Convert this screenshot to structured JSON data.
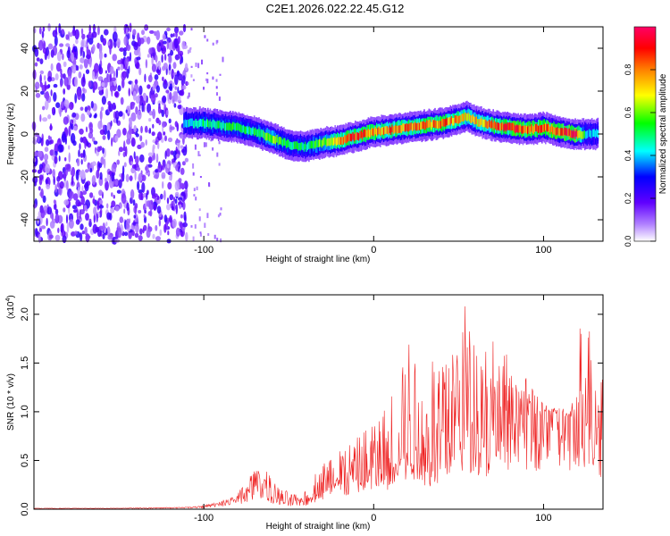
{
  "figure": {
    "title": "C2E1.2026.022.22.45.G12"
  },
  "chart_data": [
    {
      "type": "heatmap",
      "title": "C2E1.2026.022.22.45.G12",
      "xlabel": "Height of straight line (km)",
      "ylabel": "Frequency (Hz)",
      "xlim": [
        -200,
        135
      ],
      "ylim": [
        -50,
        50
      ],
      "x_ticks": [
        -100,
        0,
        100
      ],
      "y_ticks": [
        -40,
        -20,
        0,
        20,
        40
      ],
      "colorbar": {
        "label": "Normalized spectral amplitude",
        "range": [
          0,
          1
        ],
        "ticks": [
          "0.0",
          "0.2",
          "0.4",
          "0.6",
          "0.8"
        ],
        "colors": [
          "#ffffff",
          "#8000ff",
          "#0000ff",
          "#00ffff",
          "#00ff00",
          "#ffff00",
          "#ff8000",
          "#ff0000",
          "#ff00ff"
        ]
      },
      "noise_region_x": [
        -200,
        -110
      ],
      "ridge": {
        "x": [
          -112,
          -100,
          -90,
          -80,
          -70,
          -60,
          -50,
          -40,
          -30,
          -20,
          -10,
          0,
          10,
          20,
          30,
          40,
          50,
          55,
          60,
          70,
          80,
          90,
          100,
          110,
          118,
          125,
          132
        ],
        "freq": [
          5,
          5,
          4,
          3,
          1,
          -2,
          -5,
          -6,
          -4,
          -3,
          -1,
          1,
          2,
          3,
          4,
          5,
          7,
          8,
          6,
          4,
          3,
          2,
          3,
          1,
          0,
          0,
          0
        ],
        "peak": [
          0.4,
          0.5,
          0.5,
          0.5,
          0.5,
          0.6,
          0.5,
          0.5,
          0.6,
          0.8,
          0.85,
          0.8,
          0.8,
          0.8,
          0.8,
          0.8,
          0.75,
          0.7,
          0.7,
          0.8,
          0.85,
          0.85,
          0.85,
          0.9,
          0.95,
          0.4,
          0.4
        ]
      }
    },
    {
      "type": "line",
      "title": "",
      "xlabel": "Height of straight line (km)",
      "ylabel": "SNR (10 * v/v)",
      "scale_label": "(x10",
      "scale_exp": "4",
      "scale_close": ")",
      "xlim": [
        -200,
        135
      ],
      "ylim": [
        0,
        2.2
      ],
      "x_ticks": [
        -100,
        0,
        100
      ],
      "y_ticks": [
        "0.0",
        "0.5",
        "1.0",
        "1.5",
        "2.0"
      ],
      "series": [
        {
          "name": "SNR",
          "color": "#ee2222",
          "x": [
            -200,
            -150,
            -110,
            -100,
            -90,
            -80,
            -72,
            -68,
            -64,
            -60,
            -55,
            -50,
            -45,
            -40,
            -35,
            -30,
            -25,
            -20,
            -15,
            -10,
            -5,
            0,
            5,
            10,
            15,
            20,
            25,
            30,
            35,
            40,
            45,
            50,
            55,
            60,
            65,
            70,
            75,
            80,
            85,
            90,
            95,
            100,
            105,
            110,
            115,
            118,
            120,
            123,
            125,
            128,
            132,
            135
          ],
          "mean": [
            0.01,
            0.01,
            0.02,
            0.03,
            0.05,
            0.1,
            0.2,
            0.28,
            0.22,
            0.15,
            0.1,
            0.08,
            0.07,
            0.09,
            0.15,
            0.2,
            0.3,
            0.35,
            0.3,
            0.32,
            0.38,
            0.45,
            0.42,
            0.5,
            0.6,
            0.65,
            0.6,
            0.55,
            0.6,
            0.7,
            0.9,
            0.85,
            0.95,
            0.9,
            0.8,
            0.85,
            0.9,
            0.92,
            0.95,
            1.0,
            0.98,
            1.0,
            1.0,
            0.95,
            0.95,
            0.9,
            0.6,
            0.9,
            1.05,
            1.0,
            0.8,
            0.8
          ],
          "envelope": [
            0.01,
            0.01,
            0.02,
            0.04,
            0.08,
            0.18,
            0.38,
            0.48,
            0.45,
            0.3,
            0.22,
            0.18,
            0.15,
            0.2,
            0.35,
            0.5,
            0.7,
            0.8,
            0.7,
            0.75,
            0.85,
            1.0,
            1.0,
            1.2,
            1.5,
            1.9,
            1.6,
            1.4,
            1.6,
            1.75,
            1.9,
            2.15,
            2.2,
            2.15,
            1.9,
            1.75,
            1.7,
            1.55,
            1.4,
            1.35,
            1.2,
            1.1,
            1.05,
            1.05,
            1.0,
            1.15,
            1.9,
            1.95,
            2.0,
            1.95,
            1.95,
            1.9
          ]
        }
      ]
    }
  ]
}
